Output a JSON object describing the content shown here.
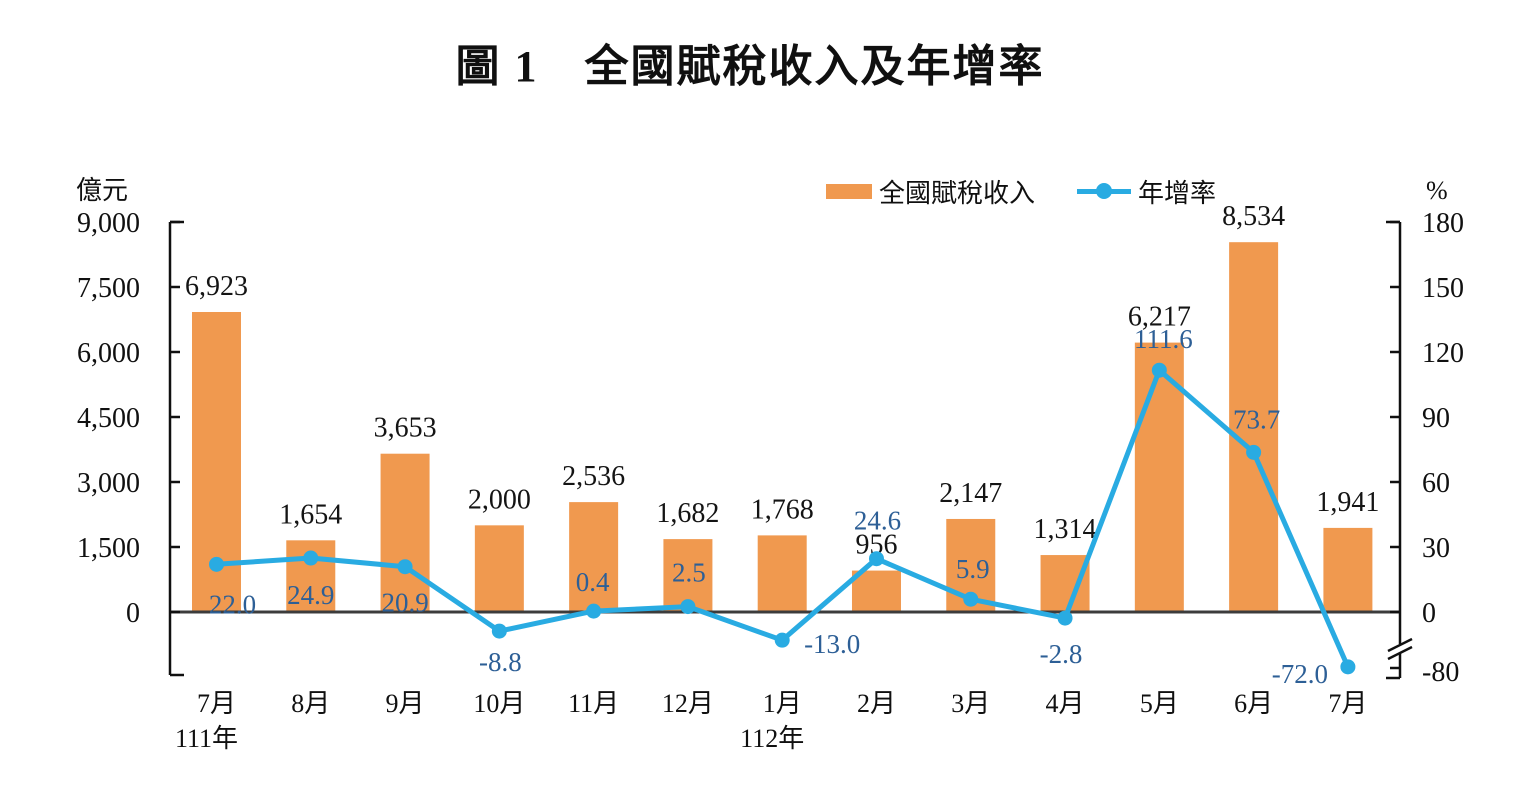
{
  "chart_data": {
    "type": "combo-bar-line",
    "title": "圖 1　全國賦稅收入及年增率",
    "categories": [
      "7月",
      "8月",
      "9月",
      "10月",
      "11月",
      "12月",
      "1月",
      "2月",
      "3月",
      "4月",
      "5月",
      "6月",
      "7月"
    ],
    "category_year_labels": [
      {
        "index": 0,
        "label": "111年"
      },
      {
        "index": 6,
        "label": "112年"
      }
    ],
    "series": [
      {
        "name": "全國賦稅收入",
        "type": "bar",
        "axis": "left",
        "color": "#F0994F",
        "values": [
          6923,
          1654,
          3653,
          2000,
          2536,
          1682,
          1768,
          956,
          2147,
          1314,
          6217,
          8534,
          1941
        ],
        "labels": [
          "6,923",
          "1,654",
          "3,653",
          "2,000",
          "2,536",
          "1,682",
          "1,768",
          "956",
          "2,147",
          "1,314",
          "6,217",
          "8,534",
          "1,941"
        ]
      },
      {
        "name": "年增率",
        "type": "line",
        "axis": "right",
        "color": "#29ABE2",
        "label_color": "#2D5F96",
        "values": [
          22.0,
          24.9,
          20.9,
          -8.8,
          0.4,
          2.5,
          -13.0,
          24.6,
          5.9,
          -2.8,
          111.6,
          73.7,
          -72.0
        ],
        "labels": [
          "22.0",
          "24.9",
          "20.9",
          "-8.8",
          "0.4",
          "2.5",
          "-13.0",
          "24.6",
          "5.9",
          "-2.8",
          "111.6",
          "73.7",
          "-72.0"
        ]
      }
    ],
    "left_axis": {
      "unit": "億元",
      "min": 0,
      "max": 9000,
      "step": 1500,
      "tick_labels": [
        "0",
        "1,500",
        "3,000",
        "4,500",
        "6,000",
        "7,500",
        "9,000"
      ]
    },
    "right_axis": {
      "unit": "%",
      "min": -80,
      "max": 180,
      "step": 30,
      "tick_labels": [
        "0",
        "30",
        "60",
        "90",
        "120",
        "150",
        "180"
      ],
      "extra_tick_label": "-80",
      "has_axis_break": true,
      "break_between": [
        0,
        -80
      ]
    },
    "grid": false,
    "legend_position": "top-right"
  }
}
